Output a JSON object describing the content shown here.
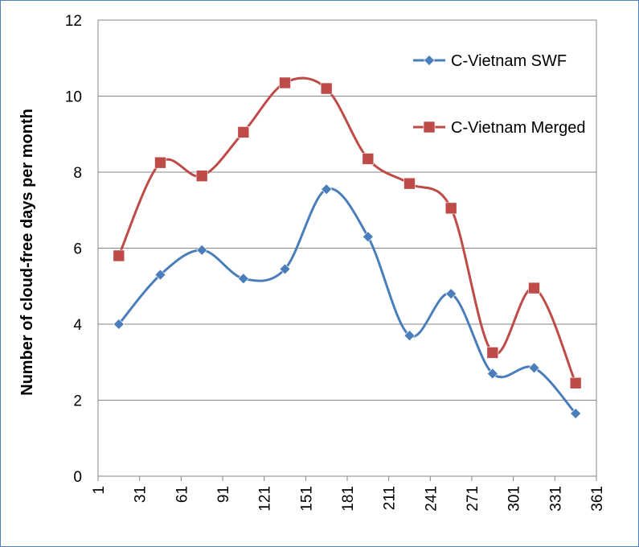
{
  "chart_data": {
    "type": "line",
    "title": "",
    "xlabel": "",
    "ylabel": "Number of cloud-free days per month",
    "xlim": [
      1,
      361
    ],
    "ylim": [
      0,
      12
    ],
    "x_ticks": [
      "1",
      "31",
      "61",
      "91",
      "121",
      "151",
      "181",
      "211",
      "241",
      "271",
      "301",
      "331",
      "361"
    ],
    "y_ticks": [
      "0",
      "2",
      "4",
      "6",
      "8",
      "10",
      "12"
    ],
    "grid": "horizontal",
    "legend": "right",
    "series": [
      {
        "name": "C-Vietnam SWF",
        "color": "#4a7ebb",
        "marker": "diamond",
        "x": [
          16,
          46,
          76,
          106,
          136,
          166,
          196,
          226,
          256,
          286,
          316,
          346
        ],
        "y": [
          4.0,
          5.3,
          5.95,
          5.2,
          5.45,
          7.55,
          6.3,
          3.7,
          4.8,
          2.7,
          2.85,
          1.65
        ]
      },
      {
        "name": "C-Vietnam Merged",
        "color": "#be4b48",
        "marker": "square",
        "x": [
          16,
          46,
          76,
          106,
          136,
          166,
          196,
          226,
          256,
          286,
          316,
          346
        ],
        "y": [
          5.8,
          8.25,
          7.9,
          9.05,
          10.35,
          10.2,
          8.35,
          7.7,
          7.05,
          3.25,
          4.95,
          2.45
        ]
      }
    ]
  }
}
